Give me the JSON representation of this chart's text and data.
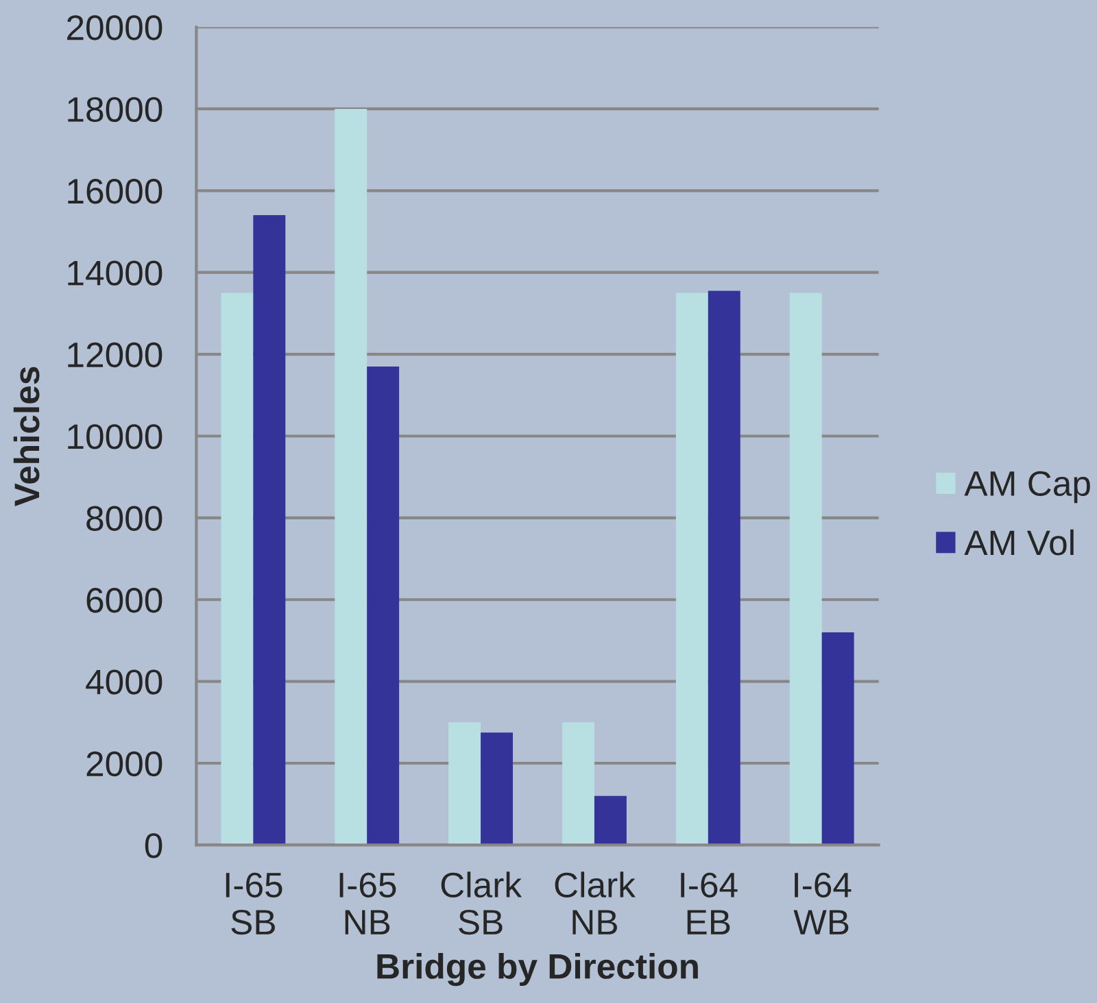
{
  "chart_data": {
    "type": "bar",
    "xlabel": "Bridge by Direction",
    "ylabel": "Vehicles",
    "categories": [
      "I-65\nSB",
      "I-65\nNB",
      "Clark\nSB",
      "Clark\nNB",
      "I-64\nEB",
      "I-64\nWB"
    ],
    "series": [
      {
        "name": "AM Cap",
        "color": "#b8dfe2",
        "values": [
          13500,
          18000,
          3000,
          3000,
          13500,
          13500
        ]
      },
      {
        "name": "AM Vol",
        "color": "#333399",
        "values": [
          15400,
          11700,
          2750,
          1200,
          13550,
          5200
        ]
      }
    ],
    "ylim": [
      0,
      20000
    ],
    "yticks": [
      0,
      2000,
      4000,
      6000,
      8000,
      10000,
      12000,
      14000,
      16000,
      18000,
      20000
    ],
    "grid": "y",
    "legend": "right"
  }
}
